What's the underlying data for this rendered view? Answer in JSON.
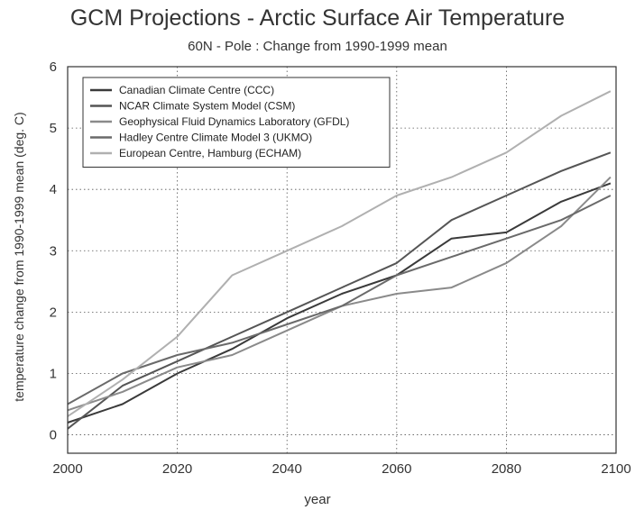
{
  "chart_data": {
    "type": "line",
    "title": "GCM Projections - Arctic Surface Air Temperature",
    "subtitle": "60N - Pole : Change from 1990-1999 mean",
    "xlabel": "year",
    "ylabel": "temperature change from 1990-1999 mean (deg. C)",
    "xlim": [
      2000,
      2100
    ],
    "ylim": [
      -0.3,
      6
    ],
    "xticks": [
      2000,
      2020,
      2040,
      2060,
      2080,
      2100
    ],
    "yticks": [
      0,
      1,
      2,
      3,
      4,
      5,
      6
    ],
    "grid": true,
    "legend_position": "top-left",
    "series": [
      {
        "name": "Canadian Climate Centre (CCC)",
        "color": "#3a3a3a",
        "x": [
          2000,
          2010,
          2020,
          2030,
          2040,
          2050,
          2060,
          2070,
          2080,
          2090,
          2099
        ],
        "values": [
          0.2,
          0.5,
          1.0,
          1.4,
          1.9,
          2.3,
          2.6,
          3.2,
          3.3,
          3.8,
          4.1
        ]
      },
      {
        "name": "NCAR Climate System Model (CSM)",
        "color": "#555555",
        "x": [
          2000,
          2010,
          2020,
          2030,
          2040,
          2050,
          2060,
          2070,
          2080,
          2090,
          2099
        ],
        "values": [
          0.1,
          0.8,
          1.2,
          1.6,
          2.0,
          2.4,
          2.8,
          3.5,
          3.9,
          4.3,
          4.6
        ]
      },
      {
        "name": "Geophysical Fluid Dynamics Laboratory (GFDL)",
        "color": "#8a8a8a",
        "x": [
          2000,
          2010,
          2020,
          2030,
          2040,
          2050,
          2060,
          2070,
          2080,
          2090,
          2099
        ],
        "values": [
          0.4,
          0.7,
          1.1,
          1.3,
          1.7,
          2.1,
          2.3,
          2.4,
          2.8,
          3.4,
          4.2
        ]
      },
      {
        "name": "Hadley Centre Climate Model 3 (UKMO)",
        "color": "#6a6a6a",
        "x": [
          2000,
          2010,
          2020,
          2030,
          2040,
          2050,
          2060,
          2070,
          2080,
          2090,
          2099
        ],
        "values": [
          0.5,
          1.0,
          1.3,
          1.5,
          1.8,
          2.1,
          2.6,
          2.9,
          3.2,
          3.5,
          3.9
        ]
      },
      {
        "name": "European Centre, Hamburg (ECHAM)",
        "color": "#b0b0b0",
        "x": [
          2000,
          2010,
          2020,
          2030,
          2040,
          2050,
          2060,
          2070,
          2080,
          2090,
          2099
        ],
        "values": [
          0.3,
          0.9,
          1.6,
          2.6,
          3.0,
          3.4,
          3.9,
          4.2,
          4.6,
          5.2,
          5.6
        ]
      }
    ]
  }
}
